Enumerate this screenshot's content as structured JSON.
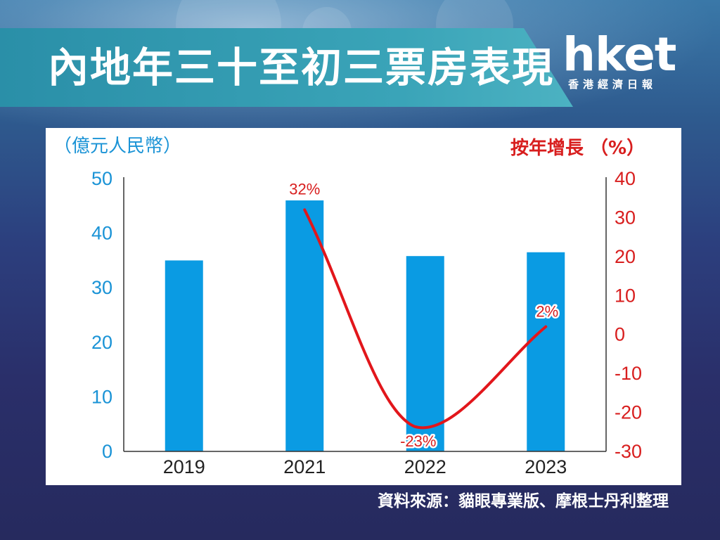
{
  "title": "內地年三十至初三票房表現",
  "logo": {
    "main": "hket",
    "sub": "香港經濟日報"
  },
  "source": "資料來源：貓眼專業版、摩根士丹利整理",
  "colors": {
    "bar": "#0a9be3",
    "line": "#e2161b",
    "left_axis": "#1a93d6",
    "right_axis": "#d81e1e"
  },
  "chart_data": {
    "type": "bar",
    "categories": [
      "2019",
      "2021",
      "2022",
      "2023"
    ],
    "series": [
      {
        "values": [
          35,
          46,
          35.8,
          36.5
        ],
        "axis": "left"
      },
      {
        "values": [
          null,
          32,
          -23,
          2
        ],
        "axis": "right",
        "render": "line"
      }
    ],
    "data_labels": [
      "32%",
      "-23%",
      "2%"
    ],
    "ylabel": "（億元人民幣）",
    "y2label": "按年增長 （%）",
    "ylim": [
      0,
      50
    ],
    "y2lim": [
      -30,
      40
    ],
    "yticks": [
      "0",
      "10",
      "20",
      "30",
      "40",
      "50"
    ],
    "y2ticks": [
      "-30",
      "-20",
      "-10",
      "0",
      "10",
      "20",
      "30",
      "40"
    ],
    "grid": false
  }
}
